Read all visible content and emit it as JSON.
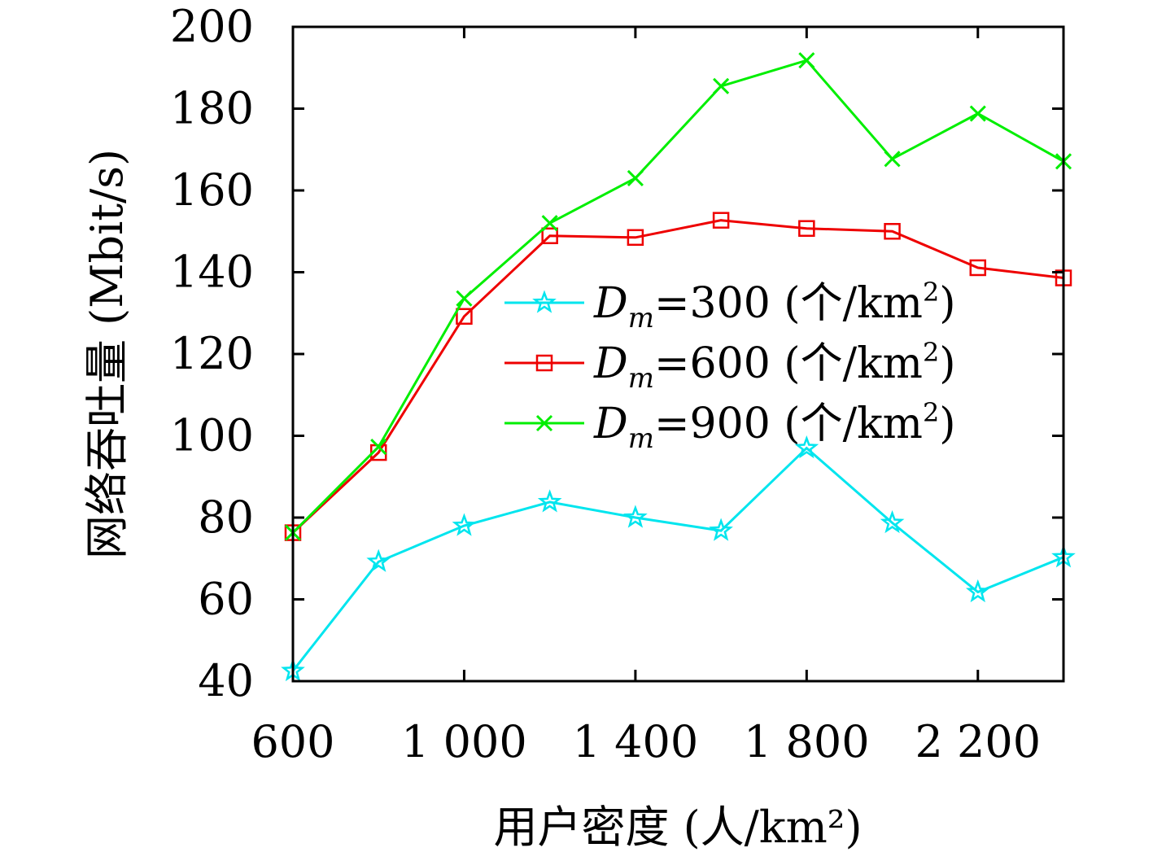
{
  "chart_data": {
    "type": "line",
    "xlabel": "用户密度 (人/km²)",
    "ylabel": "网络吞吐量 (Mbit/s)",
    "xlim": [
      600,
      2400
    ],
    "ylim": [
      40,
      200
    ],
    "x_ticks": [
      600,
      1000,
      1400,
      1800,
      2200
    ],
    "x_tick_labels": [
      "600",
      "1 000",
      "1 400",
      "1 800",
      "2 200"
    ],
    "y_ticks": [
      40,
      60,
      80,
      100,
      120,
      140,
      160,
      180,
      200
    ],
    "y_tick_labels": [
      "40",
      "60",
      "80",
      "100",
      "120",
      "140",
      "160",
      "180",
      "200"
    ],
    "grid": false,
    "legend_position": "center-right",
    "x": [
      600,
      800,
      1000,
      1200,
      1400,
      1600,
      1800,
      2000,
      2200,
      2400
    ],
    "series": [
      {
        "name": "Dm=300 (个/km²)",
        "legend_prefix": "D",
        "legend_sub": "m",
        "legend_rest": "=300 (个/km",
        "legend_sup": "2",
        "legend_close": ")",
        "color": "#00e5ee",
        "marker": "star",
        "values": [
          42.5,
          69.2,
          78,
          83.8,
          80,
          76.8,
          97,
          78.7,
          61.8,
          70.3
        ]
      },
      {
        "name": "Dm=600 (个/km²)",
        "legend_prefix": "D",
        "legend_sub": "m",
        "legend_rest": "=600 (个/km",
        "legend_sup": "2",
        "legend_close": ")",
        "color": "#ee0000",
        "marker": "square",
        "values": [
          76.3,
          95.9,
          129.2,
          148.9,
          148.5,
          152.7,
          150.7,
          150,
          141.1,
          138.6
        ]
      },
      {
        "name": "Dm=900 (个/km²)",
        "legend_prefix": "D",
        "legend_sub": "m",
        "legend_rest": "=900 (个/km",
        "legend_sup": "2",
        "legend_close": ")",
        "color": "#00ee00",
        "marker": "x",
        "values": [
          76.3,
          97.3,
          133.6,
          152,
          163,
          185.5,
          191.8,
          167.7,
          178.8,
          167.1
        ]
      }
    ]
  }
}
